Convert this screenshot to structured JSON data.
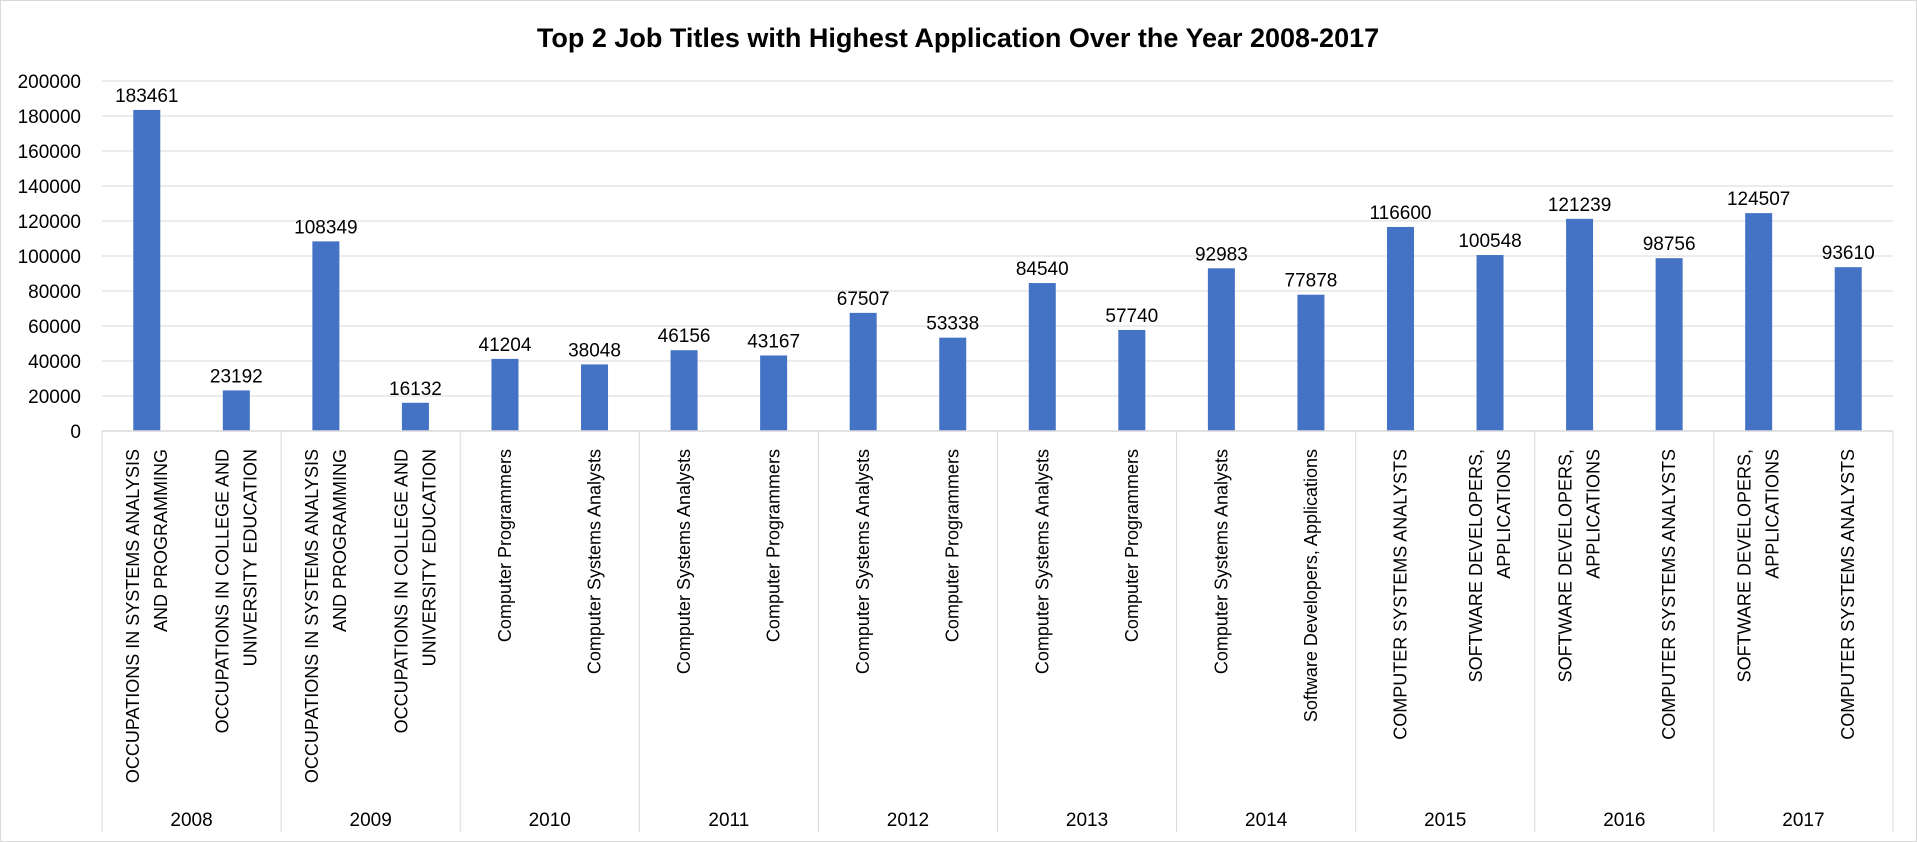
{
  "chart_data": {
    "type": "bar",
    "title": "Top 2 Job Titles with Highest Application Over the Year 2008-2017",
    "xlabel": "",
    "ylabel": "",
    "ylim": [
      0,
      200000
    ],
    "yticks": [
      0,
      20000,
      40000,
      60000,
      80000,
      100000,
      120000,
      140000,
      160000,
      180000,
      200000
    ],
    "grid": true,
    "legend": "none",
    "bar_color": "#4472C4",
    "groups": [
      {
        "year": "2008",
        "items": [
          {
            "label": [
              "OCCUPATIONS IN SYSTEMS ANALYSIS",
              "AND PROGRAMMING"
            ],
            "value": 183461
          },
          {
            "label": [
              "OCCUPATIONS IN COLLEGE AND",
              "UNIVERSITY EDUCATION"
            ],
            "value": 23192
          }
        ]
      },
      {
        "year": "2009",
        "items": [
          {
            "label": [
              "OCCUPATIONS IN SYSTEMS ANALYSIS",
              "AND PROGRAMMING"
            ],
            "value": 108349
          },
          {
            "label": [
              "OCCUPATIONS IN COLLEGE AND",
              "UNIVERSITY EDUCATION"
            ],
            "value": 16132
          }
        ]
      },
      {
        "year": "2010",
        "items": [
          {
            "label": [
              "Computer Programmers"
            ],
            "value": 41204
          },
          {
            "label": [
              "Computer Systems Analysts"
            ],
            "value": 38048
          }
        ]
      },
      {
        "year": "2011",
        "items": [
          {
            "label": [
              "Computer Systems Analysts"
            ],
            "value": 46156
          },
          {
            "label": [
              "Computer Programmers"
            ],
            "value": 43167
          }
        ]
      },
      {
        "year": "2012",
        "items": [
          {
            "label": [
              "Computer Systems Analysts"
            ],
            "value": 67507
          },
          {
            "label": [
              "Computer Programmers"
            ],
            "value": 53338
          }
        ]
      },
      {
        "year": "2013",
        "items": [
          {
            "label": [
              "Computer Systems Analysts"
            ],
            "value": 84540
          },
          {
            "label": [
              "Computer Programmers"
            ],
            "value": 57740
          }
        ]
      },
      {
        "year": "2014",
        "items": [
          {
            "label": [
              "Computer Systems Analysts"
            ],
            "value": 92983
          },
          {
            "label": [
              "Software Developers,  Applications"
            ],
            "value": 77878
          }
        ]
      },
      {
        "year": "2015",
        "items": [
          {
            "label": [
              "COMPUTER SYSTEMS ANALYSTS"
            ],
            "value": 116600
          },
          {
            "label": [
              "SOFTWARE DEVELOPERS,",
              "APPLICATIONS"
            ],
            "value": 100548
          }
        ]
      },
      {
        "year": "2016",
        "items": [
          {
            "label": [
              "SOFTWARE DEVELOPERS,",
              "APPLICATIONS"
            ],
            "value": 121239
          },
          {
            "label": [
              "COMPUTER SYSTEMS ANALYSTS"
            ],
            "value": 98756
          }
        ]
      },
      {
        "year": "2017",
        "items": [
          {
            "label": [
              "SOFTWARE DEVELOPERS,",
              "APPLICATIONS"
            ],
            "value": 124507
          },
          {
            "label": [
              "COMPUTER SYSTEMS ANALYSTS"
            ],
            "value": 93610
          }
        ]
      }
    ]
  }
}
